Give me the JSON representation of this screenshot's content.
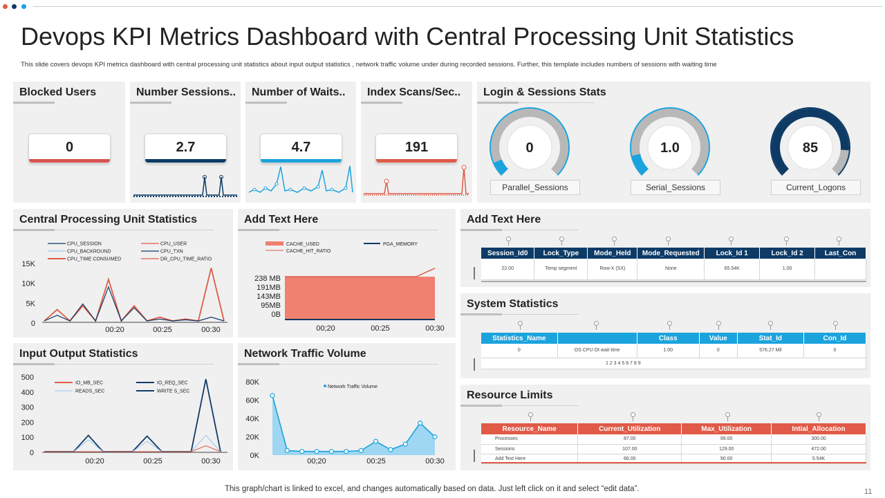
{
  "header": {
    "title": "Devops KPI Metrics Dashboard with Central Processing Unit Statistics",
    "subtitle": "This slide covers devops KPI metrics dashboard with central processing unit statistics about input output statistics , network traffic volume under during recorded sessions. Further, this template includes numbers of sessions with waiting time"
  },
  "kpis": [
    {
      "title": "Blocked Users",
      "value": "0",
      "color": "#d9534f"
    },
    {
      "title": "Number Sessions..",
      "value": "2.7",
      "color": "#0d3b66"
    },
    {
      "title": "Number of Waits..",
      "value": "4.7",
      "color": "#1ba3dd"
    },
    {
      "title": "Index Scans/Sec..",
      "value": "191",
      "color": "#e05a47"
    }
  ],
  "login_stats": {
    "title": "Login & Sessions Stats",
    "gauges": [
      {
        "value": "0",
        "label": "Parallel_Sessions",
        "fraction": 0.08,
        "color": "#1ba3dd"
      },
      {
        "value": "1.0",
        "label": "Serial_Sessions",
        "fraction": 0.12,
        "color": "#1ba3dd"
      },
      {
        "value": "85",
        "label": "Current_Logons",
        "fraction": 0.85,
        "color": "#0d3b66"
      }
    ]
  },
  "panels": {
    "cpu_title": "Central Processing Unit Statistics",
    "mem_title": "Add Text Here",
    "io_title": "Input Output Statistics",
    "net_title": "Network Traffic Volume",
    "sessions_title": "Add Text Here",
    "system_title": "System Statistics",
    "resource_title": "Resource Limits"
  },
  "cpu_chart": {
    "legend": [
      "CPU_SESSION",
      "CPU_USER",
      "CPU_BACKROUND",
      "CPU_TXN",
      "CPU_TIME CONSUMED",
      "DR_CPU_TIME_RATIO"
    ],
    "y_ticks": [
      "15K",
      "10K",
      "5K",
      "0"
    ],
    "x_ticks": [
      "00:20",
      "00:25",
      "00:30"
    ]
  },
  "mem_chart": {
    "legend": [
      "CACHE_USED",
      "PGA_MEMORY",
      "CACHE_HIT_RATIO"
    ],
    "y_ticks": [
      "238 MB",
      "191MB",
      "143MB",
      "95MB",
      "0B"
    ],
    "x_ticks": [
      "00;20",
      "00:25",
      "00:30"
    ]
  },
  "io_chart": {
    "legend": [
      "IO_MB_SEC",
      "IO_REQ_SEC",
      "READS_SEC",
      "WRITE S_SEC"
    ],
    "y_ticks": [
      "500",
      "400",
      "300",
      "200",
      "100",
      "0"
    ],
    "x_ticks": [
      "00:20",
      "00:25",
      "00:30"
    ]
  },
  "net_chart": {
    "legend": "Network Traffic Volume",
    "y_ticks": [
      "80K",
      "60K",
      "40K",
      "20K",
      "0K"
    ],
    "x_ticks": [
      "00;20",
      "00:25",
      "00:30"
    ]
  },
  "chart_data": [
    {
      "type": "line",
      "series": [
        {
          "name": "CPU_TIME CONSUMED",
          "values": [
            0,
            3000,
            0,
            4000,
            0,
            11000,
            0,
            4000,
            0,
            1000,
            0,
            500,
            0,
            14000,
            0
          ]
        },
        {
          "name": "CPU_SESSION",
          "values": [
            0,
            1500,
            0,
            4500,
            0,
            9000,
            0,
            3500,
            0,
            500,
            0,
            300,
            0,
            1000,
            0
          ]
        }
      ],
      "ylim": [
        0,
        15000
      ]
    },
    {
      "type": "area",
      "series": [
        {
          "name": "CACHE_USED",
          "values": [
            238,
            238,
            238,
            238,
            238,
            238,
            238,
            238,
            238
          ]
        },
        {
          "name": "CACHE_HIT_RATIO",
          "values": [
            238,
            238,
            238,
            238,
            238,
            238,
            238,
            238,
            285
          ]
        }
      ],
      "ylim": [
        0,
        238
      ]
    },
    {
      "type": "line",
      "series": [
        {
          "name": "IO_REQ_SEC",
          "values": [
            0,
            0,
            0,
            110,
            0,
            0,
            0,
            105,
            0,
            0,
            0,
            490,
            0
          ]
        },
        {
          "name": "READS_SEC",
          "values": [
            0,
            0,
            0,
            80,
            0,
            0,
            0,
            70,
            0,
            0,
            0,
            110,
            0
          ]
        },
        {
          "name": "IO_MB_SEC",
          "values": [
            0,
            0,
            0,
            0,
            0,
            0,
            0,
            0,
            0,
            0,
            0,
            40,
            0
          ]
        }
      ],
      "ylim": [
        0,
        500
      ]
    },
    {
      "type": "area",
      "series": [
        {
          "name": "Network Traffic Volume",
          "values": [
            65000,
            5000,
            4000,
            4000,
            4000,
            4000,
            5000,
            15000,
            6000,
            12000,
            35000,
            20000
          ]
        }
      ],
      "ylim": [
        0,
        80000
      ]
    }
  ],
  "sessions_table": {
    "headers": [
      "Session_Id0",
      "Lock_Type",
      "Mode_Held",
      "Mode_Requested",
      "Lock_Id 1",
      "Lock_Id 2",
      "Last_Con"
    ],
    "rows": [
      [
        "22.00",
        "Temp segment",
        "Row-X (SX)",
        "None",
        "65.54K",
        "1.00",
        ""
      ]
    ],
    "color": "#0d3b66"
  },
  "system_table": {
    "headers": [
      "Statistics_Name",
      "",
      "Class",
      "Value",
      "Stat_Id",
      "Con_Id"
    ],
    "rows": [
      [
        "0",
        "OS CPU Ot wait time",
        "1.00",
        "0",
        "576.27  Mil",
        "0"
      ]
    ],
    "footer": "1 2 3 4 5 6 7 8 9",
    "color": "#1ba3dd"
  },
  "resource_table": {
    "headers": [
      "Resource_Name",
      "Current_Utilization",
      "Max_Utilization",
      "Intial_Allocation"
    ],
    "rows": [
      [
        "Processes",
        "87.00",
        "99.00",
        "300.00"
      ],
      [
        "Sessions",
        "107.00",
        "129.00",
        "472.00"
      ],
      [
        "Add Text Here",
        "66.00",
        "90.00",
        "5.54K"
      ]
    ],
    "color": "#e05a47"
  },
  "footer": {
    "note": "This graph/chart is linked to excel,  and changes automatically based on data. Just left click on it and select “edit data”.",
    "page": "11"
  },
  "colors": {
    "navy": "#0d3b66",
    "blue": "#1ba3dd",
    "red": "#e05a47",
    "panel": "#f0f0f0"
  }
}
